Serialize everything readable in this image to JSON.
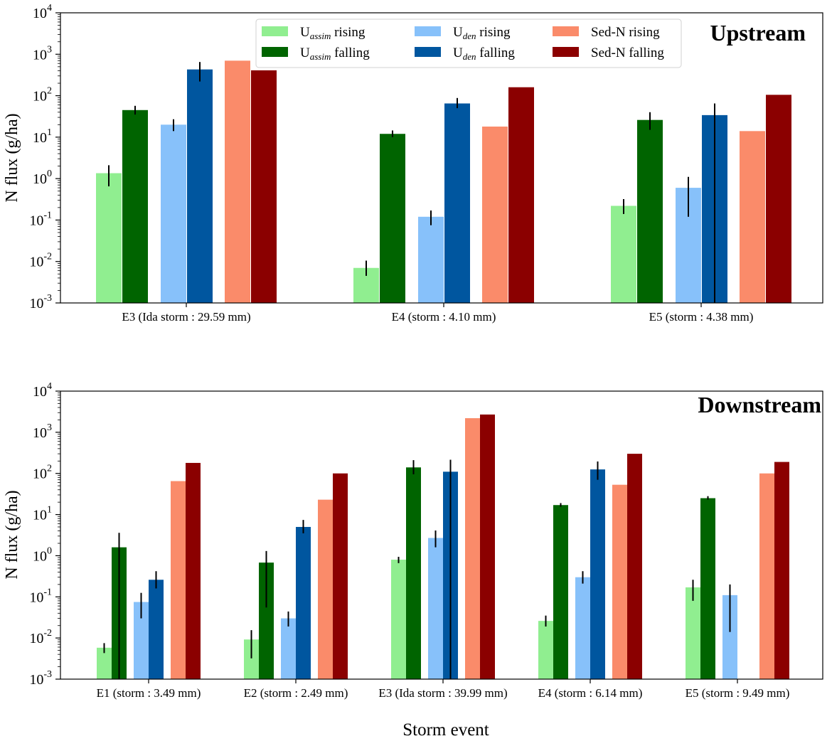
{
  "figure": {
    "xlabel": "Storm event"
  },
  "legend": {
    "items": [
      {
        "key": "u_assim_rising",
        "base": "U",
        "sub": "assim",
        "suffix": " rising",
        "color": "#90ee90"
      },
      {
        "key": "u_assim_falling",
        "base": "U",
        "sub": "assim",
        "suffix": " falling",
        "color": "#006400"
      },
      {
        "key": "u_den_rising",
        "base": "U",
        "sub": "den",
        "suffix": " rising",
        "color": "#87c1fa"
      },
      {
        "key": "u_den_falling",
        "base": "U",
        "sub": "den",
        "suffix": " falling",
        "color": "#00569f"
      },
      {
        "key": "sedn_rising",
        "base": "Sed-N",
        "sub": "",
        "suffix": " rising",
        "color": "#fa8b6a"
      },
      {
        "key": "sedn_falling",
        "base": "Sed-N",
        "sub": "",
        "suffix": " falling",
        "color": "#8b0000"
      }
    ]
  },
  "chart_data": [
    {
      "type": "bar",
      "panel": "Upstream",
      "title": "Upstream",
      "ylabel": "N flux (g/ha)",
      "yscale": "log",
      "ylim": [
        0.001,
        10000
      ],
      "yticks": [
        {
          "b": "10",
          "e": "-3"
        },
        {
          "b": "10",
          "e": "-2"
        },
        {
          "b": "10",
          "e": "-1"
        },
        {
          "b": "10",
          "e": "0"
        },
        {
          "b": "10",
          "e": "1"
        },
        {
          "b": "10",
          "e": "2"
        },
        {
          "b": "10",
          "e": "3"
        },
        {
          "b": "10",
          "e": "4"
        }
      ],
      "categories": [
        "E3 (Ida storm : 29.59 mm)",
        "E4 (storm : 4.10 mm)",
        "E5 (storm : 4.38 mm)"
      ],
      "series": [
        {
          "name": "U_assim rising",
          "values": [
            1.35,
            0.007,
            0.22
          ],
          "err_low": [
            0.65,
            0.0045,
            0.14
          ],
          "err_high": [
            2.1,
            0.0105,
            0.32
          ]
        },
        {
          "name": "U_assim falling",
          "values": [
            45,
            12,
            26
          ],
          "err_low": [
            35,
            10,
            15
          ],
          "err_high": [
            57,
            14.5,
            40
          ]
        },
        {
          "name": "U_den rising",
          "values": [
            20,
            0.12,
            0.6
          ],
          "err_low": [
            14,
            0.075,
            0.12
          ],
          "err_high": [
            27,
            0.17,
            1.1
          ]
        },
        {
          "name": "U_den falling",
          "values": [
            430,
            65,
            34
          ],
          "err_low": [
            220,
            50,
            0.001
          ],
          "err_high": [
            650,
            88,
            65
          ]
        },
        {
          "name": "Sed-N rising",
          "values": [
            700,
            18,
            14
          ]
        },
        {
          "name": "Sed-N falling",
          "values": [
            410,
            160,
            105
          ]
        }
      ]
    },
    {
      "type": "bar",
      "panel": "Downstream",
      "title": "Downstream",
      "ylabel": "N flux (g/ha)",
      "yscale": "log",
      "ylim": [
        0.001,
        10000
      ],
      "yticks": [
        {
          "b": "10",
          "e": "-3"
        },
        {
          "b": "10",
          "e": "-2"
        },
        {
          "b": "10",
          "e": "-1"
        },
        {
          "b": "10",
          "e": "0"
        },
        {
          "b": "10",
          "e": "1"
        },
        {
          "b": "10",
          "e": "2"
        },
        {
          "b": "10",
          "e": "3"
        },
        {
          "b": "10",
          "e": "4"
        }
      ],
      "categories": [
        "E1 (storm : 3.49 mm)",
        "E2 (storm : 2.49 mm)",
        "E3 (Ida storm : 39.99 mm)",
        "E4 (storm : 6.14 mm)",
        "E5 (storm : 9.49 mm)"
      ],
      "series": [
        {
          "name": "U_assim rising",
          "values": [
            0.0058,
            0.0092,
            0.8,
            0.026,
            0.17
          ],
          "err_low": [
            0.0043,
            0.0032,
            0.66,
            0.019,
            0.08
          ],
          "err_high": [
            0.0075,
            0.0155,
            0.94,
            0.035,
            0.26
          ]
        },
        {
          "name": "U_assim falling",
          "values": [
            1.6,
            0.68,
            140,
            17,
            25
          ],
          "err_low": [
            0.001,
            0.055,
            95,
            15.5,
            23
          ],
          "err_high": [
            3.6,
            1.3,
            210,
            19,
            28
          ]
        },
        {
          "name": "U_den rising",
          "values": [
            0.075,
            0.03,
            2.7,
            0.3,
            0.11
          ],
          "err_low": [
            0.03,
            0.019,
            1.6,
            0.21,
            0.014
          ],
          "err_high": [
            0.125,
            0.044,
            4.1,
            0.42,
            0.2
          ]
        },
        {
          "name": "U_den falling",
          "values": [
            0.26,
            5.0,
            110,
            125,
            null
          ],
          "err_low": [
            0.16,
            3.5,
            0.001,
            70,
            null
          ],
          "err_high": [
            0.42,
            7.4,
            215,
            195,
            null
          ]
        },
        {
          "name": "Sed-N rising",
          "values": [
            65,
            23,
            2200,
            53,
            100
          ]
        },
        {
          "name": "Sed-N falling",
          "values": [
            180,
            100,
            2700,
            300,
            190
          ]
        }
      ]
    }
  ]
}
